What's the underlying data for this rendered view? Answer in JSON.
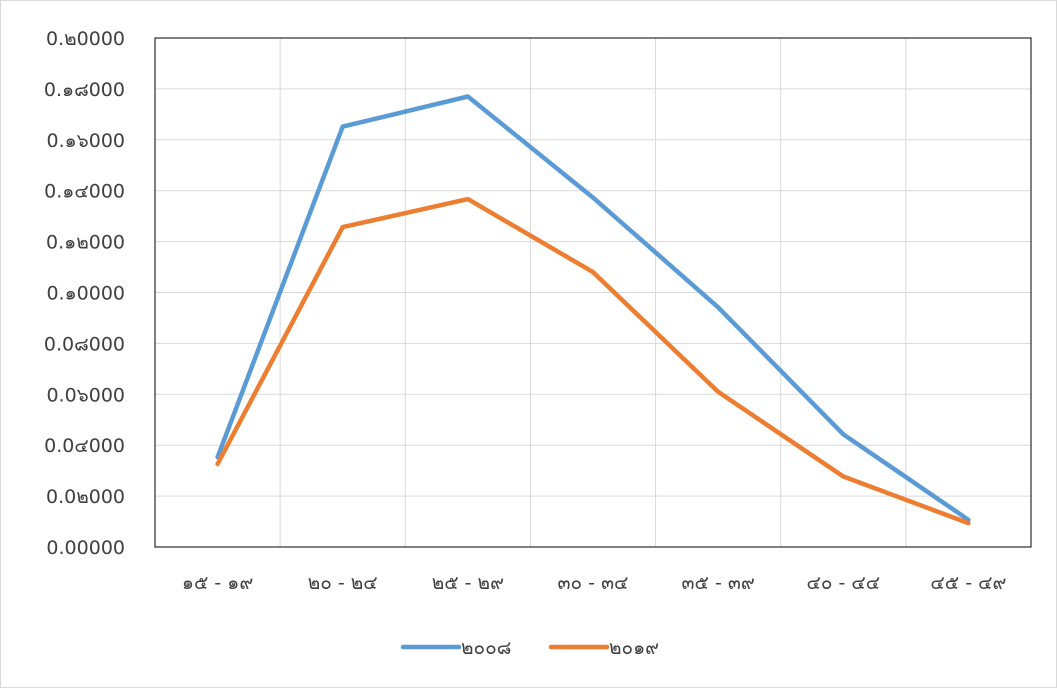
{
  "chart_data": {
    "type": "line",
    "categories": [
      "๑๕ - ๑๙",
      "๒๐ - ๒๔",
      "๒๕ - ๒๙",
      "๓๐ - ๓๔",
      "๓๕ - ๓๙",
      "๔๐ - ๔๔",
      "๔๕ - ๔๙"
    ],
    "y_tick_labels": [
      "0.00000",
      "0.02000",
      "0.04000",
      "0.06000",
      "0.08000",
      "0.10000",
      "0.12000",
      "0.14000",
      "0.16000",
      "0.18000",
      "0.20000"
    ],
    "y_tick_display": [
      "0.00000",
      "0.0๒000",
      "0.0๔000",
      "0.0๖000",
      "0.0๘000",
      "0.๑0000",
      "0.๑๒000",
      "0.๑๔000",
      "0.๑๖000",
      "0.๑๘000",
      "0.๒0000"
    ],
    "ylim": [
      0,
      0.2
    ],
    "grid": true,
    "legend_position": "bottom",
    "series": [
      {
        "name": "๒๐๐๘",
        "color": "#5b9bd5",
        "values": [
          0.0353,
          0.1652,
          0.177,
          0.1373,
          0.0942,
          0.0443,
          0.0107
        ]
      },
      {
        "name": "๒๐๑๙",
        "color": "#ed7d31",
        "values": [
          0.0326,
          0.1257,
          0.1367,
          0.108,
          0.061,
          0.0277,
          0.0094
        ]
      }
    ]
  }
}
